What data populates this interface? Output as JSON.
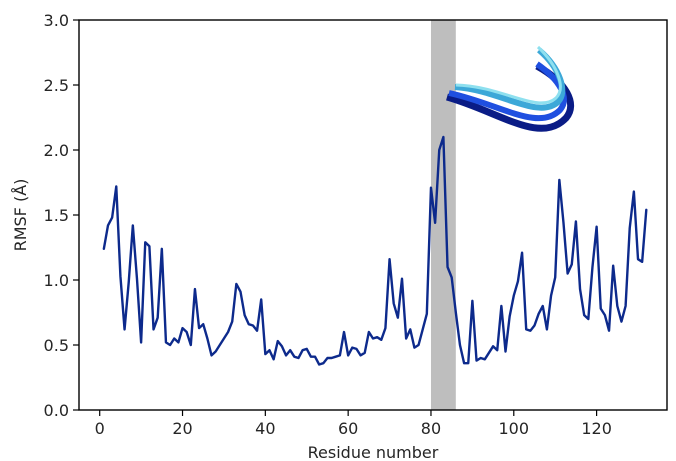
{
  "chart_data": {
    "type": "line",
    "title": "",
    "xlabel": "Residue number",
    "ylabel": "RMSF (Å)",
    "xlim": [
      -5,
      137
    ],
    "ylim": [
      0.0,
      3.0
    ],
    "xticks": [
      0,
      20,
      40,
      60,
      80,
      100,
      120
    ],
    "yticks": [
      0.0,
      0.5,
      1.0,
      1.5,
      2.0,
      2.5,
      3.0
    ],
    "ytick_labels": [
      "0.0",
      "0.5",
      "1.0",
      "1.5",
      "2.0",
      "2.5",
      "3.0"
    ],
    "grid": false,
    "highlight_band": {
      "x_start": 80,
      "x_end": 86,
      "color": "#bebebe"
    },
    "series": [
      {
        "color": "#0d2a8c",
        "x": [
          1,
          2,
          3,
          4,
          5,
          6,
          7,
          8,
          9,
          10,
          11,
          12,
          13,
          14,
          15,
          16,
          17,
          18,
          19,
          20,
          21,
          22,
          23,
          24,
          25,
          26,
          27,
          28,
          29,
          30,
          31,
          32,
          33,
          34,
          35,
          36,
          37,
          38,
          39,
          40,
          41,
          42,
          43,
          44,
          45,
          46,
          47,
          48,
          49,
          50,
          51,
          52,
          53,
          54,
          55,
          56,
          57,
          58,
          59,
          60,
          61,
          62,
          63,
          64,
          65,
          66,
          67,
          68,
          69,
          70,
          71,
          72,
          73,
          74,
          75,
          76,
          77,
          78,
          79,
          80,
          81,
          82,
          83,
          84,
          85,
          86,
          87,
          88,
          89,
          90,
          91,
          92,
          93,
          94,
          95,
          96,
          97,
          98,
          99,
          100,
          101,
          102,
          103,
          104,
          105,
          106,
          107,
          108,
          109,
          110,
          111,
          112,
          113,
          114,
          115,
          116,
          117,
          118,
          119,
          120,
          121,
          122,
          123,
          124,
          125,
          126,
          127,
          128,
          129,
          130,
          131,
          132
        ],
        "y": [
          1.24,
          1.42,
          1.48,
          1.72,
          1.03,
          0.62,
          0.98,
          1.42,
          1.01,
          0.52,
          1.29,
          1.26,
          0.62,
          0.71,
          1.24,
          0.52,
          0.5,
          0.55,
          0.52,
          0.63,
          0.6,
          0.5,
          0.93,
          0.63,
          0.66,
          0.55,
          0.42,
          0.45,
          0.5,
          0.55,
          0.6,
          0.68,
          0.97,
          0.91,
          0.73,
          0.66,
          0.65,
          0.61,
          0.85,
          0.43,
          0.46,
          0.39,
          0.53,
          0.49,
          0.42,
          0.46,
          0.41,
          0.4,
          0.46,
          0.47,
          0.41,
          0.41,
          0.35,
          0.36,
          0.4,
          0.4,
          0.41,
          0.42,
          0.6,
          0.42,
          0.48,
          0.47,
          0.42,
          0.44,
          0.6,
          0.55,
          0.56,
          0.54,
          0.63,
          1.16,
          0.82,
          0.71,
          1.01,
          0.55,
          0.62,
          0.48,
          0.5,
          0.62,
          0.74,
          1.71,
          1.44,
          2.0,
          2.1,
          1.1,
          1.02,
          0.75,
          0.5,
          0.36,
          0.36,
          0.84,
          0.38,
          0.4,
          0.39,
          0.44,
          0.49,
          0.46,
          0.8,
          0.45,
          0.72,
          0.88,
          0.99,
          1.21,
          0.62,
          0.61,
          0.65,
          0.74,
          0.8,
          0.62,
          0.88,
          1.02,
          1.77,
          1.44,
          1.05,
          1.12,
          1.45,
          0.93,
          0.73,
          0.7,
          1.1,
          1.41,
          0.78,
          0.73,
          0.61,
          1.11,
          0.8,
          0.68,
          0.8,
          1.4,
          1.68,
          1.16,
          1.14,
          1.54
        ]
      }
    ]
  },
  "inset": {
    "colors": [
      "#0a1c86",
      "#1f4fe0",
      "#3ca8d8",
      "#8ee0ef"
    ]
  }
}
